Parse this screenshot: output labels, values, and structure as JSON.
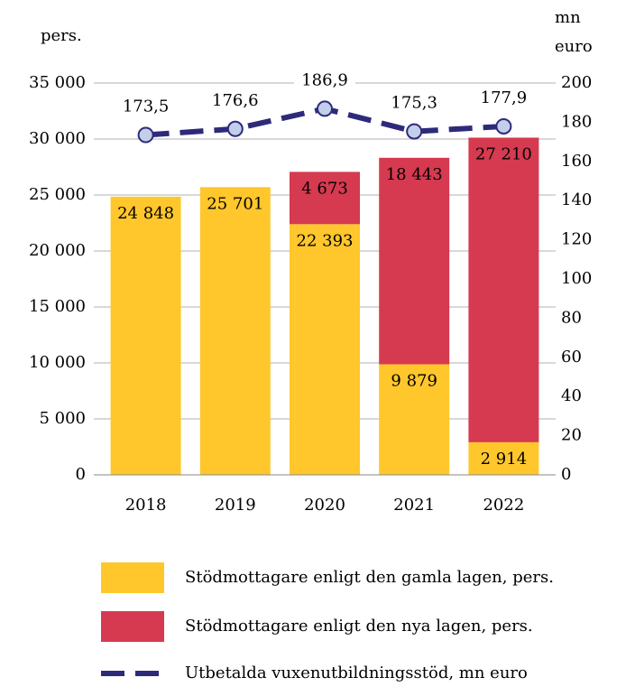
{
  "chart_data": {
    "type": "bar",
    "y_label": "pers.",
    "y2_label": [
      "mn",
      "euro"
    ],
    "categories": [
      "2018",
      "2019",
      "2020",
      "2021",
      "2022"
    ],
    "series": [
      {
        "name": "Stödmottagare enligt den gamla lagen, pers.",
        "color": "#ffc72c",
        "type": "bar",
        "label_color": "#000000",
        "values": [
          24848,
          25701,
          22393,
          9879,
          2914
        ],
        "value_labels": [
          "24 848",
          "25 701",
          "22 393",
          "9 879",
          "2 914"
        ]
      },
      {
        "name": "Stödmottagare enligt den nya lagen, pers.",
        "color": "#d63a50",
        "type": "bar",
        "label_color": "#ffffff",
        "values": [
          null,
          null,
          4673,
          18443,
          27210
        ],
        "value_labels": [
          null,
          null,
          "4 673",
          "18 443",
          "27 210"
        ]
      },
      {
        "name": "Utbetalda vuxenutbildningsstöd, mn euro",
        "color": "#2e2a7a",
        "type": "line",
        "axis": "y2",
        "marker_color": "#c3cfea",
        "values": [
          173.5,
          176.6,
          186.9,
          175.3,
          177.9
        ],
        "value_labels": [
          "173,5",
          "176,6",
          "186,9",
          "175,3",
          "177,9"
        ]
      }
    ],
    "stacked": true,
    "ylim": [
      0,
      35000
    ],
    "yticks": [
      0,
      {
        "value": 5000,
        "label": "5 000"
      },
      {
        "value": 10000,
        "label": "10 000"
      },
      {
        "value": 15000,
        "label": "15 000"
      },
      {
        "value": 20000,
        "label": "20 000"
      },
      {
        "value": 25000,
        "label": "25 000"
      },
      {
        "value": 30000,
        "label": "30 000"
      },
      {
        "value": 35000,
        "label": "35 000"
      }
    ],
    "y2lim": [
      0,
      200
    ],
    "y2ticks": [
      0,
      20,
      40,
      60,
      80,
      100,
      120,
      140,
      160,
      180,
      200
    ],
    "grid": true,
    "legend": "bottom"
  }
}
